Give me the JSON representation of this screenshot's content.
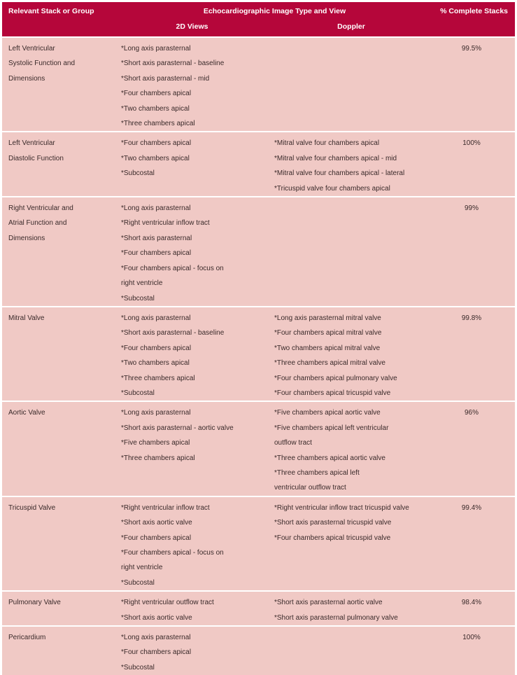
{
  "header": {
    "col_group": "Relevant Stack or Group",
    "col_image_type": "Echocardiographic Image Type and View",
    "col_complete": "% Complete Stacks",
    "sub_2d": "2D Views",
    "sub_doppler": "Doppler"
  },
  "rows": [
    {
      "group": [
        "Left Ventricular",
        "Systolic Function and",
        "Dimensions"
      ],
      "views_2d": [
        "*Long axis parasternal",
        "*Short axis parasternal - baseline",
        "*Short axis parasternal - mid",
        "*Four chambers apical",
        "*Two chambers apical",
        "*Three chambers apical"
      ],
      "doppler": [],
      "complete": "99.5%"
    },
    {
      "group": [
        "Left Ventricular",
        "Diastolic Function"
      ],
      "views_2d": [
        "*Four chambers apical",
        "*Two chambers apical",
        "*Subcostal"
      ],
      "doppler": [
        "*Mitral valve four chambers apical",
        "*Mitral valve four chambers apical - mid",
        "*Mitral valve four chambers apical - lateral",
        "*Tricuspid valve four chambers apical"
      ],
      "complete": "100%"
    },
    {
      "group": [
        "Right Ventricular and",
        "Atrial Function and",
        "Dimensions"
      ],
      "views_2d": [
        "*Long axis parasternal",
        "*Right ventricular inflow tract",
        "*Short axis parasternal",
        "*Four chambers apical",
        "*Four chambers apical - focus on",
        "right ventricle",
        "*Subcostal"
      ],
      "doppler": [],
      "complete": "99%"
    },
    {
      "group": [
        "Mitral Valve"
      ],
      "views_2d": [
        "*Long axis parasternal",
        "*Short axis parasternal - baseline",
        "*Four chambers apical",
        "*Two chambers apical",
        "*Three chambers apical",
        "*Subcostal"
      ],
      "doppler": [
        "*Long axis parasternal mitral valve",
        "*Four chambers apical mitral valve",
        "*Two chambers apical mitral valve",
        "*Three chambers apical mitral valve",
        "*Four chambers apical pulmonary valve",
        "*Four chambers apical tricuspid valve"
      ],
      "complete": "99.8%"
    },
    {
      "group": [
        "Aortic Valve"
      ],
      "views_2d": [
        "*Long axis parasternal",
        "*Short axis parasternal - aortic valve",
        "*Five chambers apical",
        "*Three chambers apical"
      ],
      "doppler": [
        "*Five chambers apical aortic valve",
        "*Five chambers apical left ventricular",
        "outflow tract",
        "*Three chambers apical aortic valve",
        "*Three chambers apical left",
        " ventricular outflow tract"
      ],
      "complete": "96%"
    },
    {
      "group": [
        "Tricuspid Valve"
      ],
      "views_2d": [
        "*Right ventricular inflow tract",
        "*Short axis aortic valve",
        "*Four chambers apical",
        "*Four chambers apical - focus on",
        "right ventricle",
        "*Subcostal"
      ],
      "doppler": [
        "*Right ventricular inflow tract tricuspid valve",
        "*Short axis parasternal tricuspid valve",
        "*Four chambers apical tricuspid valve"
      ],
      "complete": "99.4%"
    },
    {
      "group": [
        "Pulmonary Valve"
      ],
      "views_2d": [
        "*Right ventricular outflow tract",
        "*Short axis aortic valve"
      ],
      "doppler": [
        "*Short axis parasternal aortic valve",
        "*Short axis parasternal pulmonary valve"
      ],
      "complete": "98.4%"
    },
    {
      "group": [
        "Pericardium"
      ],
      "views_2d": [
        "*Long axis parasternal",
        "*Four chambers apical",
        "*Subcostal"
      ],
      "doppler": [],
      "complete": "100%"
    }
  ]
}
